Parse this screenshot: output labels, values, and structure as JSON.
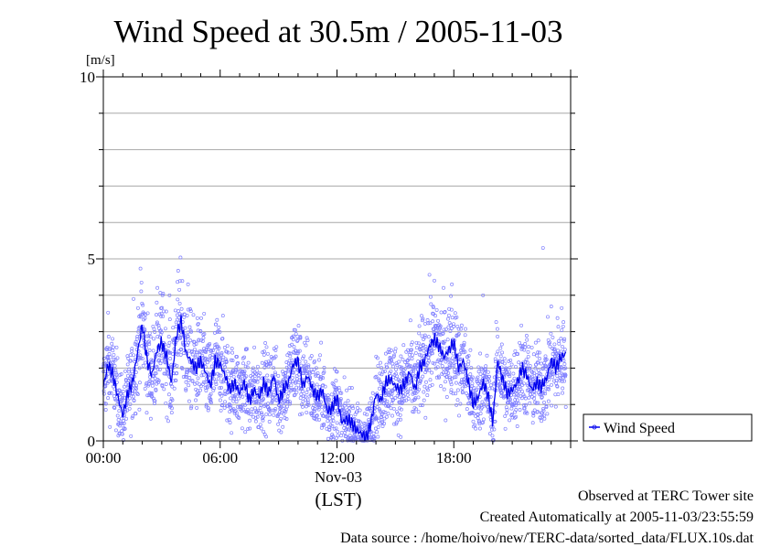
{
  "chart_data": {
    "type": "line",
    "title": "Wind Speed at 30.5m / 2005-11-03",
    "ylabel": "[m/s]",
    "xlabel": "(LST)",
    "date_label": "Nov-03",
    "ylim": [
      0,
      10
    ],
    "yticks": [
      0,
      5,
      10
    ],
    "xlim": [
      0,
      24
    ],
    "xticks": [
      {
        "value": 0,
        "label": "00:00"
      },
      {
        "value": 6,
        "label": "06:00"
      },
      {
        "value": 12,
        "label": "12:00"
      },
      {
        "value": 18,
        "label": "18:00"
      }
    ],
    "grid": true,
    "legend_position": "right",
    "series": [
      {
        "name": "Wind Speed",
        "color": "#0000ee",
        "x": [
          0,
          0.25,
          0.5,
          0.75,
          1,
          1.25,
          1.5,
          1.75,
          2,
          2.25,
          2.5,
          2.75,
          3,
          3.25,
          3.5,
          3.75,
          4,
          4.25,
          4.5,
          4.75,
          5,
          5.25,
          5.5,
          5.75,
          6,
          6.25,
          6.5,
          6.75,
          7,
          7.25,
          7.5,
          7.75,
          8,
          8.25,
          8.5,
          8.75,
          9,
          9.25,
          9.5,
          9.75,
          10,
          10.25,
          10.5,
          10.75,
          11,
          11.25,
          11.5,
          11.75,
          12,
          12.25,
          12.5,
          12.75,
          13,
          13.25,
          13.5,
          13.75,
          14,
          14.25,
          14.5,
          14.75,
          15,
          15.25,
          15.5,
          15.75,
          16,
          16.25,
          16.5,
          16.75,
          17,
          17.25,
          17.5,
          17.75,
          18,
          18.25,
          18.5,
          18.75,
          19,
          19.25,
          19.5,
          19.75,
          20,
          20.25,
          20.5,
          20.75,
          21,
          21.25,
          21.5,
          21.75,
          22,
          22.25,
          22.5,
          22.75,
          23,
          23.25,
          23.5,
          23.75
        ],
        "values": [
          1.5,
          2.1,
          1.8,
          1.2,
          0.7,
          1.3,
          1.6,
          2.4,
          3.2,
          2.2,
          1.8,
          2.5,
          2.7,
          2.3,
          1.6,
          2.9,
          3.3,
          2.4,
          2.2,
          2.0,
          2.2,
          1.9,
          1.5,
          2.2,
          2.1,
          1.8,
          1.4,
          1.6,
          1.3,
          1.6,
          1.1,
          1.4,
          1.2,
          1.6,
          1.3,
          1.8,
          1.1,
          1.4,
          1.6,
          2.1,
          2.2,
          1.5,
          1.8,
          1.4,
          1.2,
          1.4,
          0.8,
          0.9,
          1.2,
          0.5,
          0.6,
          0.5,
          0.3,
          0.2,
          0.1,
          0.5,
          1.3,
          1.1,
          1.6,
          1.7,
          1.5,
          1.4,
          1.6,
          1.9,
          1.4,
          2.0,
          2.2,
          2.6,
          2.8,
          2.6,
          2.3,
          2.5,
          2.7,
          2.0,
          2.2,
          1.6,
          1.0,
          1.2,
          1.6,
          1.3,
          0.5,
          2.2,
          1.7,
          1.3,
          1.4,
          1.6,
          2.0,
          1.8,
          1.4,
          1.6,
          1.5,
          1.7,
          2.2,
          2.0,
          2.3,
          2.4
        ]
      }
    ],
    "outliers": [
      {
        "x": 22.58,
        "y": 5.3
      },
      {
        "x": 4.35,
        "y": 4.3
      },
      {
        "x": 17.9,
        "y": 4.3
      },
      {
        "x": 19.5,
        "y": 4.0
      },
      {
        "x": 1.55,
        "y": 3.9
      },
      {
        "x": 3.4,
        "y": 4.0
      }
    ]
  },
  "footer": {
    "line1": "Observed at TERC Tower site",
    "line2": "Created Automatically at 2005-11-03/23:55:59",
    "line3": "Data source : /home/hoivo/new/TERC-data/sorted_data/FLUX.10s.dat"
  }
}
